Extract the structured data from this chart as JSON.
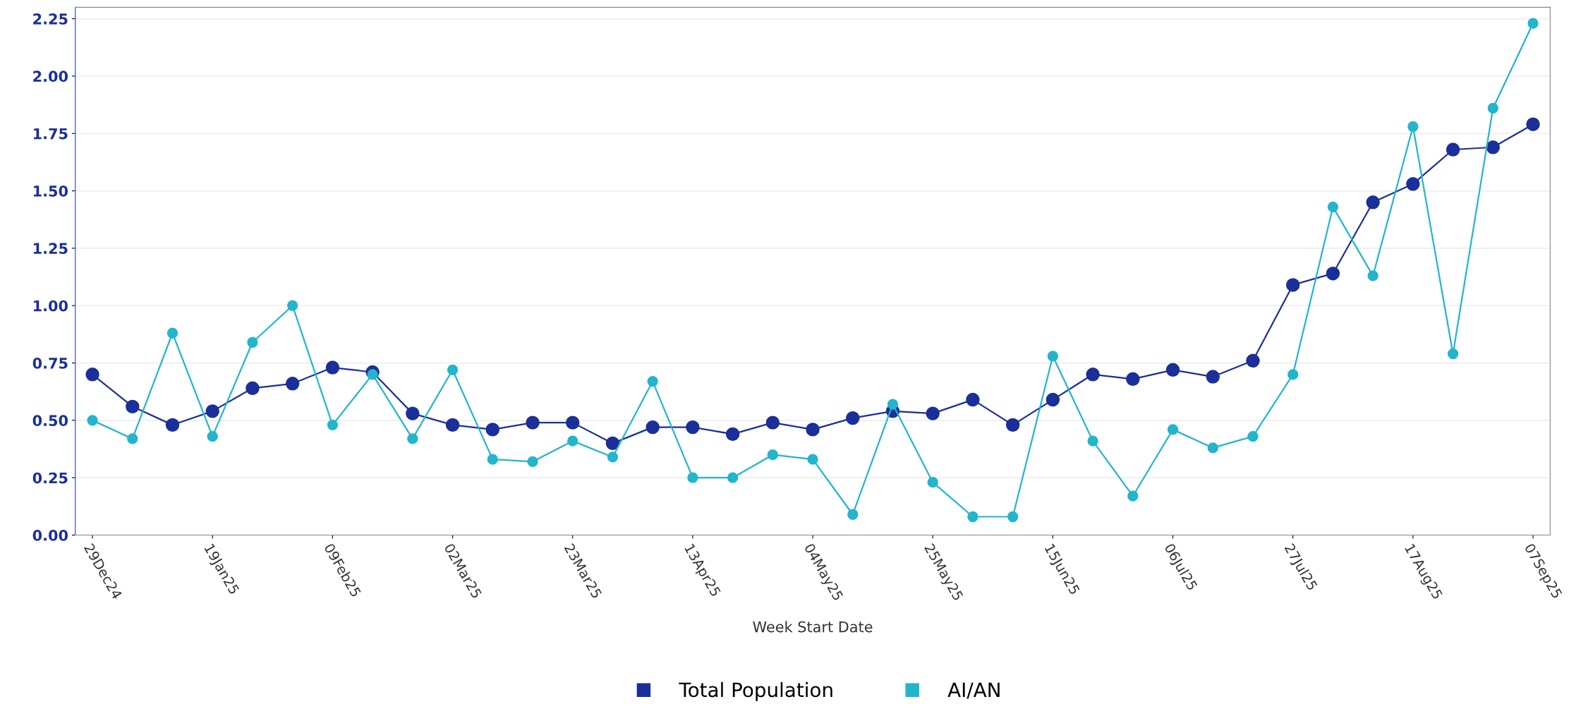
{
  "chart_data": {
    "type": "line",
    "xlabel": "Week Start Date",
    "x": [
      "2024-12-29",
      "2025-01-05",
      "2025-01-12",
      "2025-01-19",
      "2025-01-26",
      "2025-02-02",
      "2025-02-09",
      "2025-02-16",
      "2025-02-23",
      "2025-03-02",
      "2025-03-09",
      "2025-03-16",
      "2025-03-23",
      "2025-03-30",
      "2025-04-06",
      "2025-04-13",
      "2025-04-20",
      "2025-04-27",
      "2025-05-04",
      "2025-05-11",
      "2025-05-18",
      "2025-05-25",
      "2025-06-01",
      "2025-06-08",
      "2025-06-15",
      "2025-06-22",
      "2025-06-29",
      "2025-07-06",
      "2025-07-13",
      "2025-07-20",
      "2025-07-27",
      "2025-08-03",
      "2025-08-10",
      "2025-08-17",
      "2025-08-24",
      "2025-08-31",
      "2025-09-07"
    ],
    "series": [
      {
        "name": "Total Population",
        "color": "#1a2f9a",
        "values": [
          0.7,
          0.56,
          0.48,
          0.54,
          0.64,
          0.66,
          0.73,
          0.71,
          0.53,
          0.48,
          0.46,
          0.49,
          0.49,
          0.4,
          0.47,
          0.47,
          0.44,
          0.49,
          0.46,
          0.51,
          0.54,
          0.53,
          0.59,
          0.48,
          0.59,
          0.7,
          0.68,
          0.72,
          0.69,
          0.76,
          1.09,
          1.14,
          1.45,
          1.53,
          1.68,
          1.69,
          1.79
        ]
      },
      {
        "name": "AI/AN",
        "color": "#22b5cc",
        "values": [
          0.5,
          0.42,
          0.88,
          0.43,
          0.84,
          1.0,
          0.48,
          0.7,
          0.42,
          0.72,
          0.33,
          0.32,
          0.41,
          0.34,
          0.67,
          0.25,
          0.25,
          0.35,
          0.33,
          0.09,
          0.57,
          0.23,
          0.08,
          0.08,
          0.78,
          0.41,
          0.17,
          0.46,
          0.38,
          0.43,
          0.7,
          1.43,
          1.13,
          1.78,
          0.79,
          1.86,
          2.23
        ]
      }
    ],
    "xlim": [
      "2024-12-26",
      "2025-09-10"
    ],
    "xticks": [
      {
        "value": "2024-12-29",
        "label": "29Dec24"
      },
      {
        "value": "2025-01-19",
        "label": "19Jan25"
      },
      {
        "value": "2025-02-09",
        "label": "09Feb25"
      },
      {
        "value": "2025-03-02",
        "label": "02Mar25"
      },
      {
        "value": "2025-03-23",
        "label": "23Mar25"
      },
      {
        "value": "2025-04-13",
        "label": "13Apr25"
      },
      {
        "value": "2025-05-04",
        "label": "04May25"
      },
      {
        "value": "2025-05-25",
        "label": "25May25"
      },
      {
        "value": "2025-06-15",
        "label": "15Jun25"
      },
      {
        "value": "2025-07-06",
        "label": "06Jul25"
      },
      {
        "value": "2025-07-27",
        "label": "27Jul25"
      },
      {
        "value": "2025-08-17",
        "label": "17Aug25"
      },
      {
        "value": "2025-09-07",
        "label": "07Sep25"
      }
    ],
    "ylim": [
      0,
      2.3
    ],
    "yticks": [
      {
        "value": 0,
        "label": "0.00"
      },
      {
        "value": 0.25,
        "label": "0.25"
      },
      {
        "value": 0.5,
        "label": "0.50"
      },
      {
        "value": 0.75,
        "label": "0.75"
      },
      {
        "value": 1.0,
        "label": "1.00"
      },
      {
        "value": 1.25,
        "label": "1.25"
      },
      {
        "value": 1.5,
        "label": "1.50"
      },
      {
        "value": 1.75,
        "label": "1.75"
      },
      {
        "value": 2.0,
        "label": "2.00"
      },
      {
        "value": 2.25,
        "label": "2.25"
      }
    ],
    "grid": "y",
    "legend": "bottom",
    "marker": "circle",
    "line_style": "solid"
  }
}
